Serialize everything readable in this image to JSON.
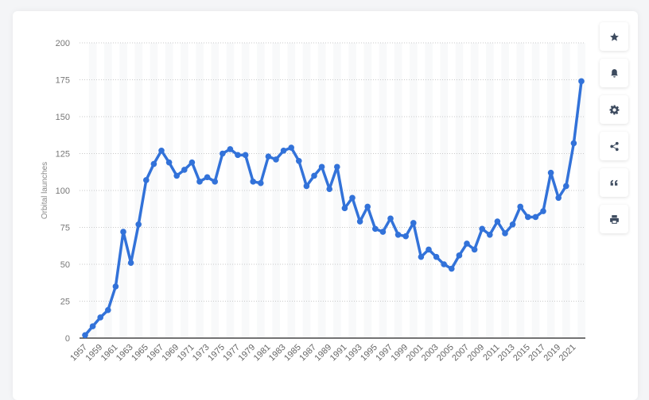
{
  "chart_data": {
    "type": "line",
    "title": "",
    "xlabel": "",
    "ylabel": "Orbital launches",
    "ylim": [
      0,
      200
    ],
    "yticks": [
      0,
      25,
      50,
      75,
      100,
      125,
      150,
      175,
      200
    ],
    "x": [
      1957,
      1958,
      1959,
      1960,
      1961,
      1962,
      1963,
      1964,
      1965,
      1966,
      1967,
      1968,
      1969,
      1970,
      1971,
      1972,
      1973,
      1974,
      1975,
      1976,
      1977,
      1978,
      1979,
      1980,
      1981,
      1982,
      1983,
      1984,
      1985,
      1986,
      1987,
      1988,
      1989,
      1990,
      1991,
      1992,
      1993,
      1994,
      1995,
      1996,
      1997,
      1998,
      1999,
      2000,
      2001,
      2002,
      2003,
      2004,
      2005,
      2006,
      2007,
      2008,
      2009,
      2010,
      2011,
      2012,
      2013,
      2014,
      2015,
      2016,
      2017,
      2018,
      2019,
      2020,
      2021,
      2022
    ],
    "xtick_labels": [
      "1957",
      "1959",
      "1961",
      "1963",
      "1965",
      "1967",
      "1969",
      "1971",
      "1973",
      "1975",
      "1977",
      "1979",
      "1981",
      "1983",
      "1985",
      "1987",
      "1989",
      "1991",
      "1993",
      "1995",
      "1997",
      "1999",
      "2001",
      "2003",
      "2005",
      "2007",
      "2009",
      "2011",
      "2013",
      "2015",
      "2017",
      "2019",
      "2021"
    ],
    "series": [
      {
        "name": "Orbital launches",
        "color": "#3272d9",
        "values": [
          2,
          8,
          14,
          19,
          35,
          72,
          51,
          77,
          107,
          118,
          127,
          119,
          110,
          114,
          119,
          106,
          109,
          106,
          125,
          128,
          124,
          124,
          106,
          105,
          123,
          121,
          127,
          129,
          120,
          103,
          110,
          116,
          101,
          116,
          88,
          95,
          79,
          89,
          74,
          72,
          81,
          70,
          69,
          78,
          55,
          60,
          55,
          50,
          47,
          56,
          64,
          60,
          74,
          70,
          79,
          71,
          77,
          89,
          82,
          82,
          86,
          112,
          95,
          103,
          132,
          174
        ]
      }
    ],
    "grid": true,
    "legend": "none"
  },
  "sidebar": {
    "buttons": [
      {
        "name": "favorite",
        "icon": "star-icon"
      },
      {
        "name": "notification",
        "icon": "bell-icon"
      },
      {
        "name": "settings",
        "icon": "gear-icon"
      },
      {
        "name": "share",
        "icon": "share-icon"
      },
      {
        "name": "cite",
        "icon": "quote-icon"
      },
      {
        "name": "print",
        "icon": "print-icon"
      }
    ]
  }
}
